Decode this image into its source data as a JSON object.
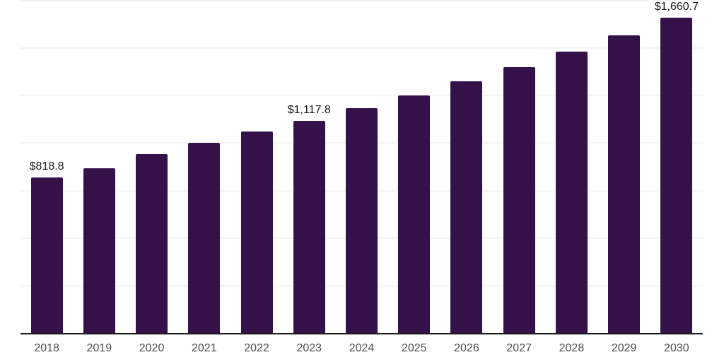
{
  "chart_data": {
    "type": "bar",
    "title": "",
    "categories": [
      "2018",
      "2019",
      "2020",
      "2021",
      "2022",
      "2023",
      "2024",
      "2025",
      "2026",
      "2027",
      "2028",
      "2029",
      "2030"
    ],
    "values": [
      818.8,
      868,
      943,
      1003,
      1061,
      1117.8,
      1183,
      1251,
      1324,
      1401,
      1483,
      1569,
      1660.7
    ],
    "value_labels": [
      {
        "index": 0,
        "category": "2018",
        "text": "$818.8"
      },
      {
        "index": 5,
        "category": "2023",
        "text": "$1,117.8"
      },
      {
        "index": 12,
        "category": "2030",
        "text": "$1,660.7"
      }
    ],
    "xlabel": "",
    "ylabel": "",
    "ylim": [
      0,
      1750
    ],
    "grid_step": 250,
    "grid_visible": true,
    "legend_position": "none",
    "colors": {
      "bar": "#341149",
      "gridline": "#f4f4f4",
      "axis_line": "#1a1a1a",
      "tick_label": "#4d4d4d",
      "value_label": "#1a1a1a",
      "background": "#ffffff"
    }
  }
}
